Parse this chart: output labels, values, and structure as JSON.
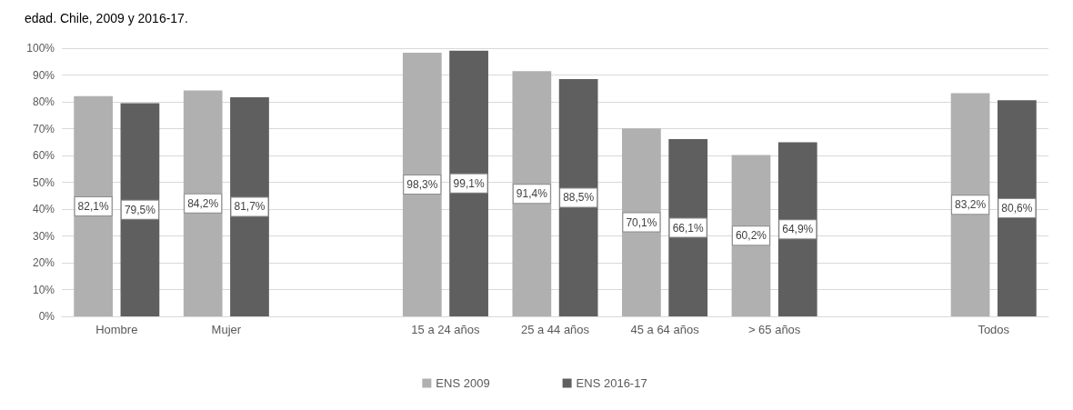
{
  "chart_data": {
    "type": "bar",
    "title": "edad. Chile, 2009 y 2016-17.",
    "categories": [
      "Hombre",
      "Mujer",
      null,
      "15 a 24 años",
      "25 a 44 años",
      "45 a 64 años",
      "> 65 años",
      null,
      "Todos"
    ],
    "series": [
      {
        "name": "ENS 2009",
        "color": "#b0b0b0",
        "values": [
          82.1,
          84.2,
          null,
          98.3,
          91.4,
          70.1,
          60.2,
          null,
          83.2
        ],
        "value_labels": [
          "82,1%",
          "84,2%",
          null,
          "98,3%",
          "91,4%",
          "70,1%",
          "60,2%",
          null,
          "83,2%"
        ]
      },
      {
        "name": "ENS 2016-17",
        "color": "#5f5f5f",
        "values": [
          79.5,
          81.7,
          null,
          99.1,
          88.5,
          66.1,
          64.9,
          null,
          80.6
        ],
        "value_labels": [
          "79,5%",
          "81,7%",
          null,
          "99,1%",
          "88,5%",
          "66,1%",
          "64,9%",
          null,
          "80,6%"
        ]
      }
    ],
    "ylim": [
      0,
      100
    ],
    "yticks": [
      {
        "value": 0,
        "label": "0%"
      },
      {
        "value": 10,
        "label": "10%"
      },
      {
        "value": 20,
        "label": "20%"
      },
      {
        "value": 30,
        "label": "30%"
      },
      {
        "value": 40,
        "label": "40%"
      },
      {
        "value": 50,
        "label": "50%"
      },
      {
        "value": 60,
        "label": "60%"
      },
      {
        "value": 70,
        "label": "70%"
      },
      {
        "value": 80,
        "label": "80%"
      },
      {
        "value": 90,
        "label": "90%"
      },
      {
        "value": 100,
        "label": "100%"
      }
    ],
    "grid": "y",
    "legend": "bottom"
  }
}
